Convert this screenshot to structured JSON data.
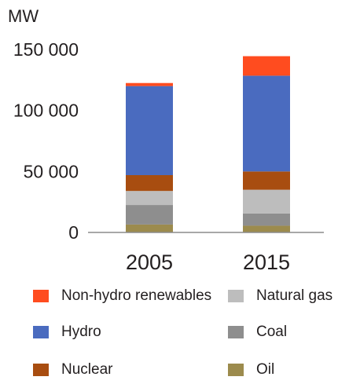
{
  "chart_data": {
    "type": "bar",
    "stacked": true,
    "ylabel": "MW",
    "ylim": [
      0,
      150000
    ],
    "yticks": [
      0,
      50000,
      100000,
      150000
    ],
    "ytick_labels": [
      "0",
      "50 000",
      "100 000",
      "150 000"
    ],
    "categories": [
      "2005",
      "2015"
    ],
    "series": [
      {
        "name": "Oil",
        "color": "#9c8b4d",
        "values": [
          6500,
          5500
        ]
      },
      {
        "name": "Coal",
        "color": "#8e8e8e",
        "values": [
          16000,
          10000
        ]
      },
      {
        "name": "Natural gas",
        "color": "#bdbdbd",
        "values": [
          11500,
          19500
        ]
      },
      {
        "name": "Nuclear",
        "color": "#a84d10",
        "values": [
          13000,
          15000
        ]
      },
      {
        "name": "Hydro",
        "color": "#4a6bbf",
        "values": [
          73000,
          78500
        ]
      },
      {
        "name": "Non-hydro renewables",
        "color": "#ff4c1f",
        "values": [
          2500,
          16000
        ]
      }
    ],
    "legend_order": [
      "Non-hydro renewables",
      "Natural gas",
      "Hydro",
      "Coal",
      "Nuclear",
      "Oil"
    ]
  }
}
